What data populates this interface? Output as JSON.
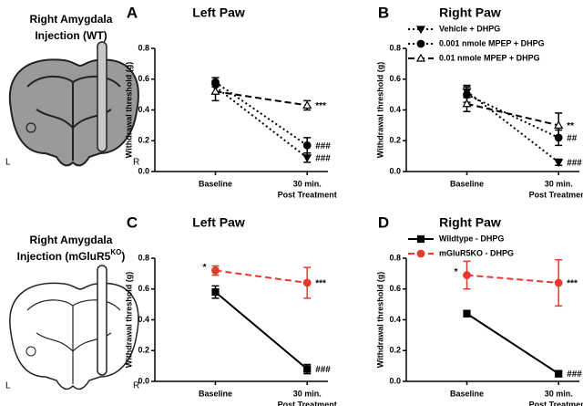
{
  "side_panels": [
    {
      "title_lines": [
        {
          "text": "Right Amygdala"
        },
        {
          "text": "Injection (WT)"
        }
      ],
      "left": "L",
      "right": "R"
    },
    {
      "title_lines": [
        {
          "text": "Right Amygdala"
        },
        {
          "text": "Injection (mGluR5",
          "sup": "KO",
          "after": ")"
        }
      ],
      "left": "L",
      "right": "R"
    }
  ],
  "chart_data": [
    {
      "type": "line",
      "panel_label": "A",
      "title": "Left Paw",
      "y_label": "Withdrawal threshold (g)",
      "categories": [
        [
          "Baseline"
        ],
        [
          "30 min.",
          "Post Treatment"
        ]
      ],
      "ylim": [
        0,
        0.8
      ],
      "yticks": [
        {
          "value": 0,
          "label": "0.0"
        },
        0.2,
        0.4,
        0.6,
        0.8
      ],
      "legend": false,
      "series": [
        {
          "name": "Vehicle + DHPG",
          "color": "#000000",
          "marker": "triangle-down",
          "dash": "dotted",
          "values": [
            0.55,
            0.09
          ],
          "errors": [
            0.04,
            0.03
          ],
          "annotations": [
            null,
            "###"
          ]
        },
        {
          "name": "0.001 nmole MPEP + DHPG",
          "color": "#000000",
          "marker": "circle",
          "dash": "dotted",
          "values": [
            0.58,
            0.17
          ],
          "errors": [
            0.03,
            0.05
          ],
          "annotations": [
            null,
            "###"
          ]
        },
        {
          "name": "0.01 nmole MPEP + DHPG",
          "color": "#000000",
          "marker": "triangle-open",
          "dash": "dashed",
          "values": [
            0.52,
            0.43
          ],
          "errors": [
            0.06,
            0.03
          ],
          "annotations": [
            null,
            "***"
          ]
        }
      ]
    },
    {
      "type": "line",
      "panel_label": "B",
      "title": "Right Paw",
      "y_label": "Withdrawal threshold (g)",
      "categories": [
        [
          "Baseline"
        ],
        [
          "30 min.",
          "Post Treatment"
        ]
      ],
      "ylim": [
        0,
        0.8
      ],
      "yticks": [
        {
          "value": 0,
          "label": "0.0"
        },
        0.2,
        0.4,
        0.6,
        0.8
      ],
      "legend": true,
      "series": [
        {
          "name": "Vehicle + DHPG",
          "color": "#000000",
          "marker": "triangle-down",
          "dash": "dotted",
          "values": [
            0.52,
            0.06
          ],
          "errors": [
            0.04,
            0.02
          ],
          "annotations": [
            null,
            "###"
          ]
        },
        {
          "name": "0.001 nmole MPEP + DHPG",
          "color": "#000000",
          "marker": "circle",
          "dash": "dotted",
          "values": [
            0.5,
            0.22
          ],
          "errors": [
            0.05,
            0.05
          ],
          "annotations": [
            null,
            "##"
          ]
        },
        {
          "name": "0.01 nmole MPEP + DHPG",
          "color": "#000000",
          "marker": "triangle-open",
          "dash": "dashed",
          "values": [
            0.44,
            0.3
          ],
          "errors": [
            0.05,
            0.08
          ],
          "annotations": [
            null,
            "**"
          ]
        }
      ]
    },
    {
      "type": "line",
      "panel_label": "C",
      "title": "Left Paw",
      "y_label": "Withdrawal threshold (g)",
      "categories": [
        [
          "Baseline"
        ],
        [
          "30 min.",
          "Post Treatment"
        ]
      ],
      "ylim": [
        0,
        0.8
      ],
      "yticks": [
        {
          "value": 0,
          "label": "0.0"
        },
        0.2,
        0.4,
        0.6,
        0.8
      ],
      "legend": false,
      "series": [
        {
          "name": "Wildtype - DHPG",
          "color": "#000000",
          "marker": "square",
          "dash": "solid",
          "values": [
            0.58,
            0.08
          ],
          "errors": [
            0.04,
            0.03
          ],
          "annotations": [
            null,
            "###"
          ]
        },
        {
          "name": "mGluR5KO - DHPG",
          "color": "#e8392f",
          "marker": "circle",
          "dash": "dashed",
          "values": [
            0.72,
            0.64
          ],
          "errors": [
            0.03,
            0.1
          ],
          "annotations": [
            "*",
            "***"
          ]
        }
      ]
    },
    {
      "type": "line",
      "panel_label": "D",
      "title": "Right Paw",
      "y_label": "Withdrawal threshold (g)",
      "categories": [
        [
          "Baseline"
        ],
        [
          "30 min.",
          "Post Treatment"
        ]
      ],
      "ylim": [
        0,
        0.8
      ],
      "yticks": [
        {
          "value": 0,
          "label": "0.0"
        },
        0.2,
        0.4,
        0.6,
        0.8
      ],
      "legend": true,
      "series": [
        {
          "name": "Wildtype - DHPG",
          "color": "#000000",
          "marker": "square",
          "dash": "solid",
          "values": [
            0.44,
            0.05
          ],
          "errors": [
            0.02,
            0.02
          ],
          "annotations": [
            null,
            "###"
          ]
        },
        {
          "name": "mGluR5KO - DHPG",
          "color": "#e8392f",
          "marker": "circle",
          "dash": "dashed",
          "values": [
            0.69,
            0.64
          ],
          "errors": [
            0.09,
            0.15
          ],
          "annotations": [
            "*",
            "***"
          ]
        }
      ]
    }
  ]
}
